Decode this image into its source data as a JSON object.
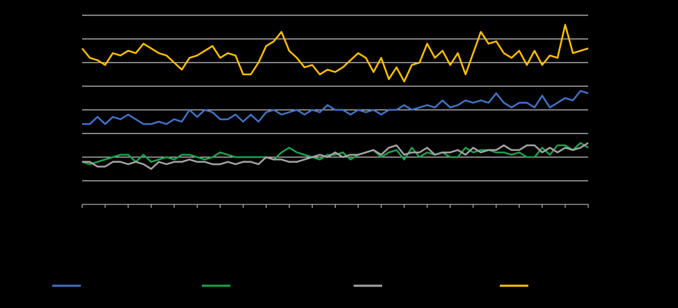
{
  "chart_data": {
    "type": "line",
    "series": [
      {
        "color": "#4472c4",
        "values": [
          3.4,
          3.4,
          3.7,
          3.4,
          3.7,
          3.6,
          3.8,
          3.6,
          3.4,
          3.4,
          3.5,
          3.4,
          3.6,
          3.5,
          4.0,
          3.7,
          4.0,
          3.9,
          3.6,
          3.6,
          3.8,
          3.5,
          3.8,
          3.5,
          3.9,
          4.0,
          3.8,
          3.9,
          4.0,
          3.8,
          4.0,
          3.9,
          4.2,
          4.0,
          4.0,
          3.8,
          4.0,
          3.9,
          4.0,
          3.8,
          4.0,
          4.0,
          4.2,
          4.0,
          4.1,
          4.2,
          4.1,
          4.4,
          4.1,
          4.2,
          4.4,
          4.3,
          4.4,
          4.3,
          4.7,
          4.3,
          4.1,
          4.3,
          4.3,
          4.1,
          4.6,
          4.1,
          4.3,
          4.5,
          4.4,
          4.8,
          4.7
        ]
      },
      {
        "color": "#1fa24a",
        "values": [
          1.8,
          1.7,
          1.8,
          1.9,
          2.0,
          2.1,
          2.1,
          1.8,
          2.1,
          1.8,
          1.9,
          2.0,
          1.9,
          2.1,
          2.1,
          2.0,
          1.9,
          2.0,
          2.2,
          2.1,
          2.0,
          2.0,
          2.0,
          2.0,
          2.0,
          1.9,
          2.2,
          2.4,
          2.2,
          2.1,
          2.0,
          1.9,
          2.1,
          2.1,
          2.2,
          1.9,
          2.1,
          2.2,
          2.3,
          2.0,
          2.2,
          2.3,
          1.9,
          2.4,
          2.0,
          2.2,
          2.1,
          2.2,
          2.0,
          2.0,
          2.4,
          2.2,
          2.3,
          2.3,
          2.2,
          2.2,
          2.1,
          2.2,
          2.0,
          2.0,
          2.4,
          2.1,
          2.5,
          2.5,
          2.3,
          2.6,
          2.4
        ]
      },
      {
        "color": "#a5a5a5",
        "values": [
          1.8,
          1.8,
          1.6,
          1.6,
          1.8,
          1.8,
          1.7,
          1.8,
          1.7,
          1.5,
          1.8,
          1.7,
          1.8,
          1.8,
          1.9,
          1.8,
          1.8,
          1.7,
          1.7,
          1.8,
          1.7,
          1.8,
          1.8,
          1.7,
          2.0,
          1.9,
          1.9,
          1.8,
          1.8,
          1.9,
          2.0,
          2.1,
          2.0,
          2.2,
          2.0,
          2.1,
          2.1,
          2.2,
          2.3,
          2.1,
          2.4,
          2.5,
          2.1,
          2.2,
          2.2,
          2.4,
          2.1,
          2.2,
          2.2,
          2.3,
          2.1,
          2.4,
          2.2,
          2.3,
          2.3,
          2.5,
          2.3,
          2.3,
          2.5,
          2.5,
          2.2,
          2.4,
          2.2,
          2.4,
          2.3,
          2.4,
          2.6
        ]
      },
      {
        "color": "#ffc000",
        "values": [
          6.6,
          6.2,
          6.1,
          5.9,
          6.4,
          6.3,
          6.5,
          6.4,
          6.8,
          6.6,
          6.4,
          6.3,
          6.0,
          5.7,
          6.2,
          6.3,
          6.5,
          6.7,
          6.2,
          6.4,
          6.3,
          5.5,
          5.5,
          6.0,
          6.7,
          6.9,
          7.3,
          6.5,
          6.2,
          5.8,
          5.9,
          5.5,
          5.7,
          5.6,
          5.8,
          6.1,
          6.4,
          6.2,
          5.6,
          6.2,
          5.3,
          5.8,
          5.2,
          5.9,
          6.0,
          6.8,
          6.2,
          6.5,
          5.9,
          6.4,
          5.5,
          6.4,
          7.3,
          6.8,
          6.9,
          6.4,
          6.2,
          6.5,
          5.9,
          6.5,
          5.9,
          6.3,
          6.2,
          7.6,
          6.4,
          6.5,
          6.6
        ]
      }
    ],
    "xlim": [
      0,
      66
    ],
    "xticks": [
      0,
      3,
      6,
      9,
      12,
      15,
      18,
      21,
      24,
      27,
      30,
      33,
      36,
      39,
      42,
      45,
      48,
      51,
      54,
      57,
      60,
      63,
      66
    ],
    "ylim": [
      0,
      8
    ],
    "yticks": [
      0,
      1,
      2,
      3,
      4,
      5,
      6,
      7,
      8
    ],
    "grid": true
  }
}
